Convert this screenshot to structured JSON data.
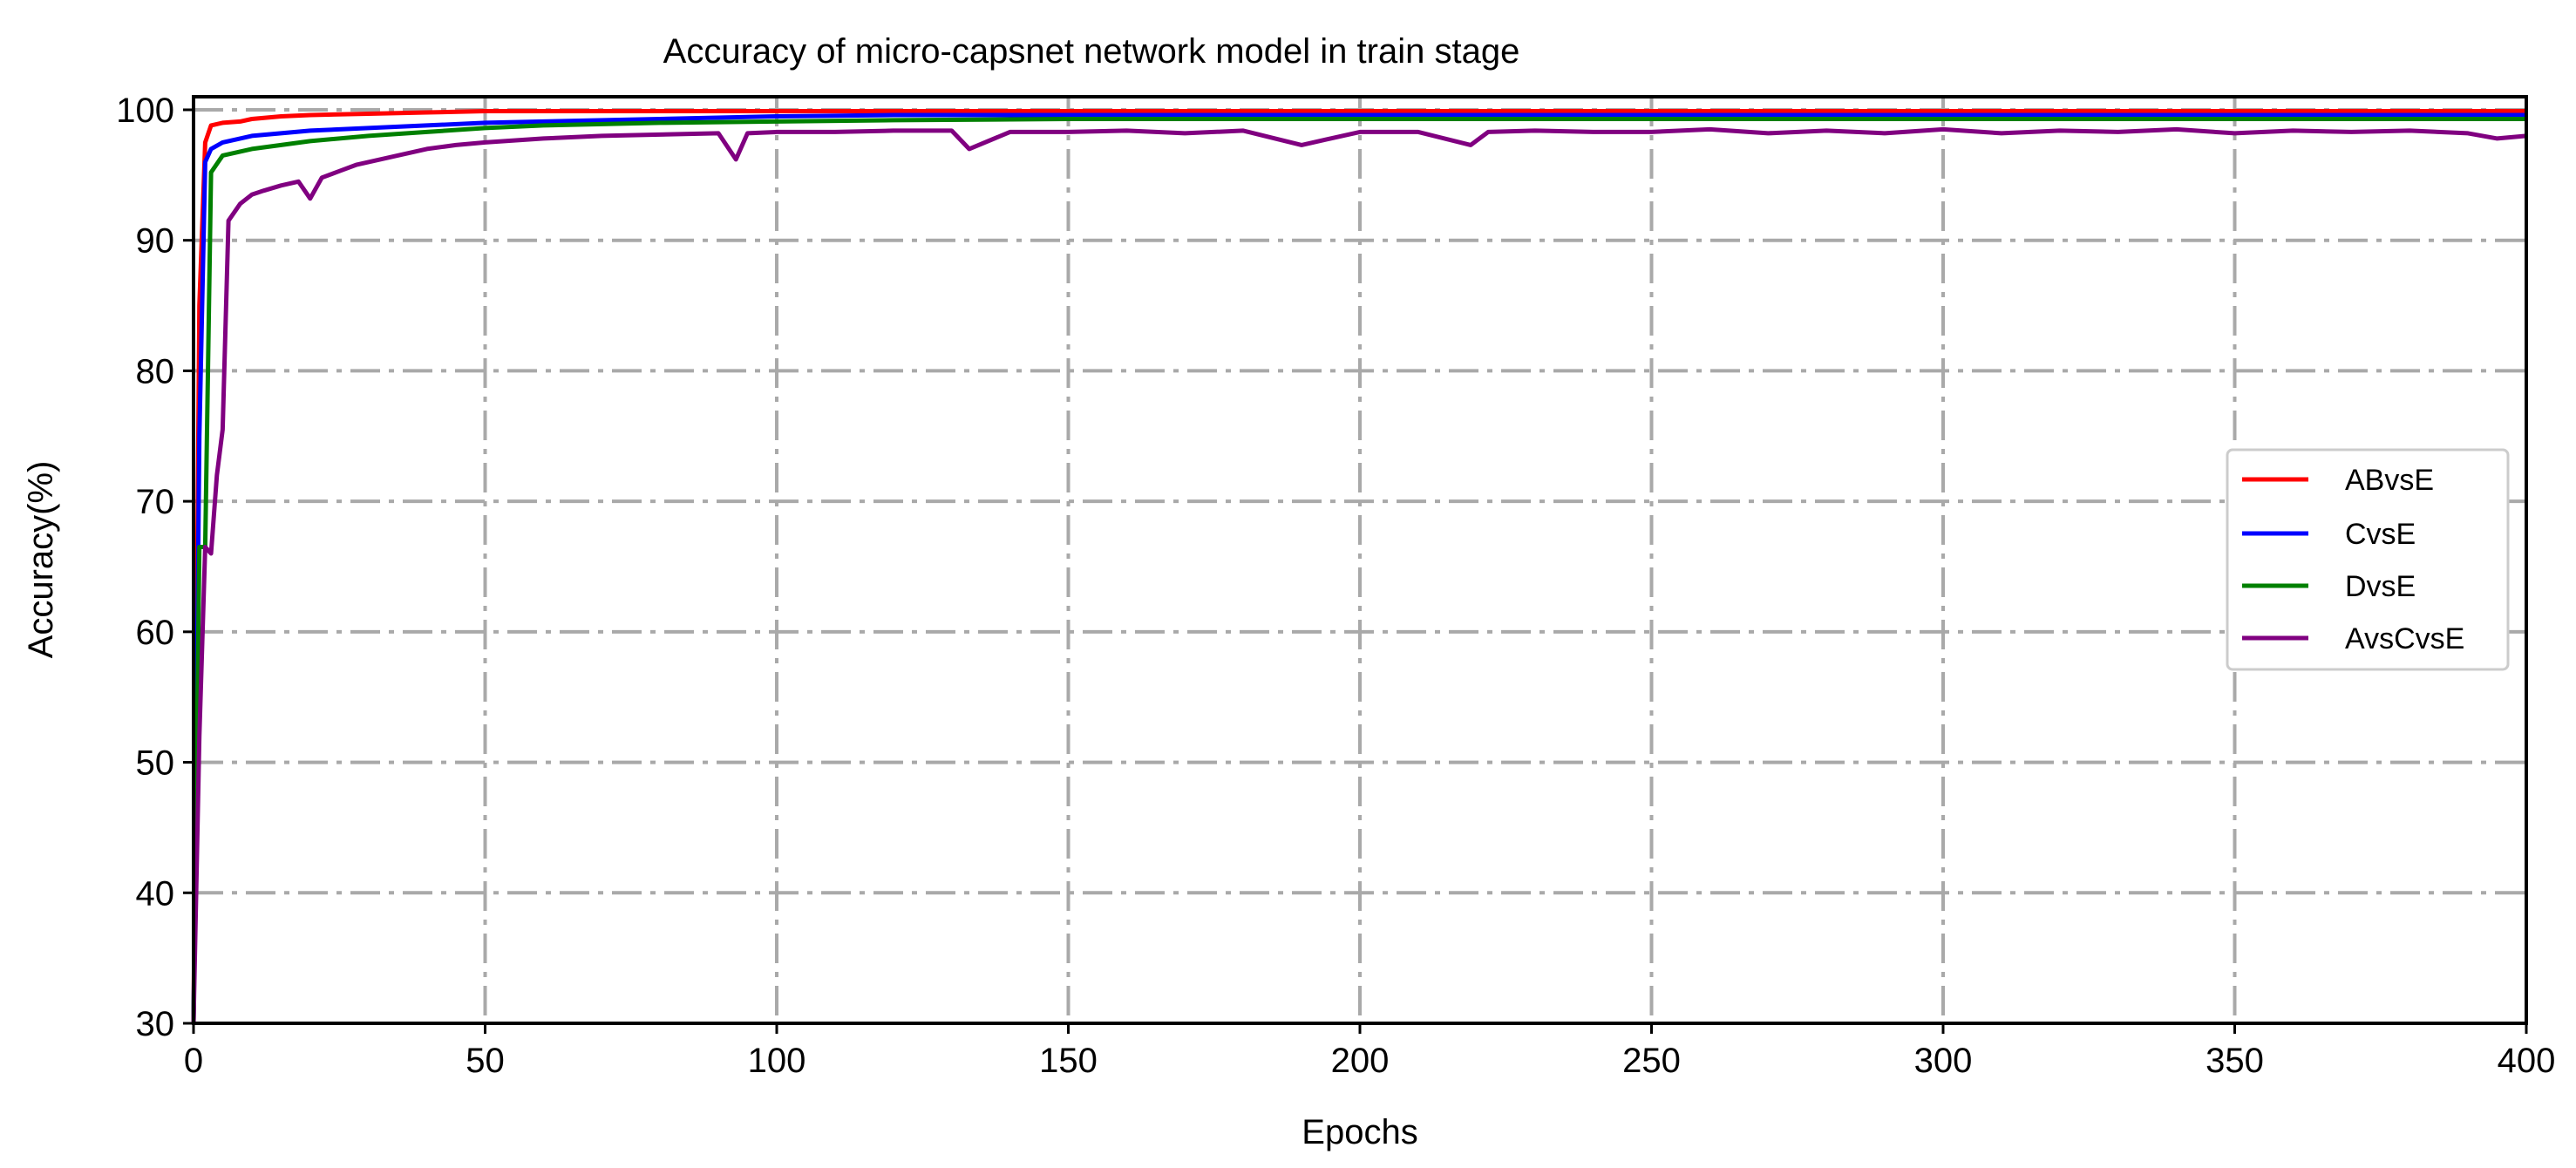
{
  "chart_data": {
    "type": "line",
    "title": "Accuracy of micro-capsnet network model in train stage",
    "xlabel": "Epochs",
    "ylabel": "Accuracy(%)",
    "xlim": [
      0,
      400
    ],
    "ylim": [
      30,
      101
    ],
    "xticks": [
      "0",
      "50",
      "100",
      "150",
      "200",
      "250",
      "300",
      "350",
      "400"
    ],
    "yticks": [
      "30",
      "40",
      "50",
      "60",
      "70",
      "80",
      "90",
      "100"
    ],
    "grid": true,
    "grid_style": "dash-dot",
    "legend_position": "center-right",
    "series": [
      {
        "name": "ABvsE",
        "color": "#ff0000",
        "x": [
          0,
          1,
          2,
          3,
          5,
          8,
          10,
          15,
          20,
          30,
          40,
          50,
          60,
          80,
          100,
          150,
          200,
          250,
          300,
          350,
          400
        ],
        "y": [
          30,
          85,
          97.5,
          98.8,
          99.0,
          99.1,
          99.3,
          99.5,
          99.6,
          99.7,
          99.8,
          99.9,
          99.9,
          99.9,
          99.9,
          99.9,
          99.9,
          99.9,
          99.9,
          99.9,
          99.9
        ]
      },
      {
        "name": "CvsE",
        "color": "#0000ff",
        "x": [
          0,
          1,
          2,
          3,
          5,
          8,
          10,
          15,
          20,
          30,
          40,
          50,
          60,
          80,
          100,
          120,
          150,
          200,
          250,
          300,
          350,
          400
        ],
        "y": [
          30,
          75,
          96,
          97.0,
          97.5,
          97.8,
          98.0,
          98.2,
          98.4,
          98.6,
          98.8,
          99.0,
          99.1,
          99.3,
          99.5,
          99.6,
          99.6,
          99.6,
          99.6,
          99.6,
          99.6,
          99.6
        ]
      },
      {
        "name": "DvsE",
        "color": "#008000",
        "x": [
          0,
          1,
          2,
          3,
          5,
          8,
          10,
          15,
          20,
          30,
          40,
          50,
          60,
          80,
          100,
          120,
          150,
          200,
          250,
          300,
          350,
          400
        ],
        "y": [
          30,
          66.5,
          66.5,
          95.2,
          96.5,
          96.8,
          97.0,
          97.3,
          97.6,
          98.0,
          98.3,
          98.6,
          98.8,
          99.0,
          99.1,
          99.2,
          99.3,
          99.3,
          99.3,
          99.3,
          99.3,
          99.3
        ]
      },
      {
        "name": "AvsCvsE",
        "color": "#800080",
        "x": [
          0,
          1,
          2,
          3,
          4,
          5,
          6,
          8,
          10,
          12,
          15,
          18,
          20,
          22,
          25,
          28,
          30,
          35,
          40,
          45,
          50,
          60,
          70,
          80,
          90,
          93,
          95,
          100,
          110,
          120,
          130,
          133,
          140,
          150,
          160,
          170,
          180,
          190,
          200,
          210,
          219,
          222,
          230,
          240,
          250,
          260,
          270,
          280,
          290,
          300,
          310,
          320,
          330,
          340,
          350,
          360,
          370,
          380,
          390,
          395,
          400
        ],
        "y": [
          30,
          52,
          66.5,
          66.0,
          72.0,
          75.5,
          91.5,
          92.8,
          93.5,
          93.8,
          94.2,
          94.5,
          93.2,
          94.8,
          95.3,
          95.8,
          96.0,
          96.5,
          97.0,
          97.3,
          97.5,
          97.8,
          98.0,
          98.1,
          98.2,
          96.2,
          98.2,
          98.3,
          98.3,
          98.4,
          98.4,
          97.0,
          98.3,
          98.3,
          98.4,
          98.2,
          98.4,
          97.3,
          98.3,
          98.3,
          97.3,
          98.3,
          98.4,
          98.3,
          98.3,
          98.5,
          98.2,
          98.4,
          98.2,
          98.5,
          98.2,
          98.4,
          98.3,
          98.5,
          98.2,
          98.4,
          98.3,
          98.4,
          98.2,
          97.8,
          98.0
        ]
      }
    ]
  }
}
